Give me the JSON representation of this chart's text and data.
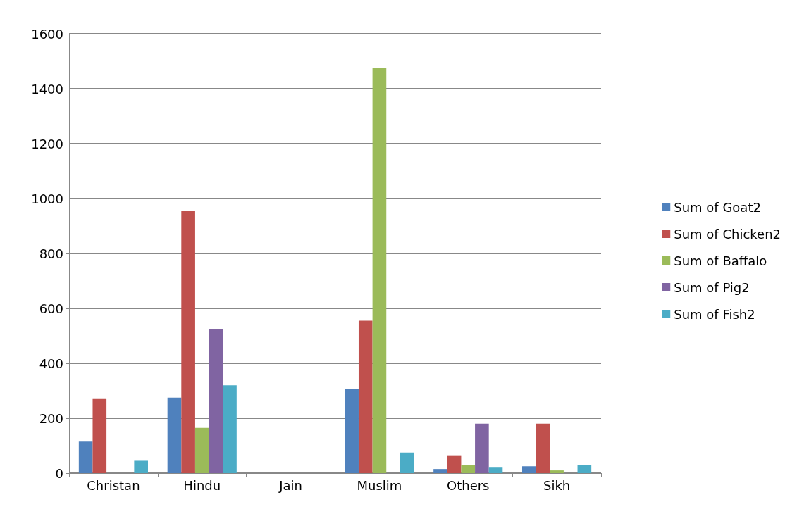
{
  "chart_data": {
    "type": "bar",
    "categories": [
      "Christan",
      "Hindu",
      "Jain",
      "Muslim",
      "Others",
      "Sikh"
    ],
    "series": [
      {
        "name": "Sum of Goat2",
        "color": "#4f81bd",
        "values": [
          115,
          275,
          0,
          305,
          15,
          25
        ]
      },
      {
        "name": "Sum of Chicken2",
        "color": "#c0504d",
        "values": [
          270,
          955,
          0,
          555,
          65,
          180
        ]
      },
      {
        "name": "Sum of Baffalo",
        "color": "#9bbb59",
        "values": [
          null,
          165,
          0,
          1475,
          30,
          10
        ]
      },
      {
        "name": "Sum of Pig2",
        "color": "#8064a2",
        "values": [
          null,
          525,
          0,
          null,
          180,
          null
        ]
      },
      {
        "name": "Sum of Fish2",
        "color": "#4bacc6",
        "values": [
          45,
          320,
          0,
          75,
          20,
          30
        ]
      }
    ],
    "ylim": [
      0,
      1600
    ],
    "yticks": [
      0,
      200,
      400,
      600,
      800,
      1000,
      1200,
      1400,
      1600
    ],
    "grid": "y",
    "legend": "right"
  }
}
